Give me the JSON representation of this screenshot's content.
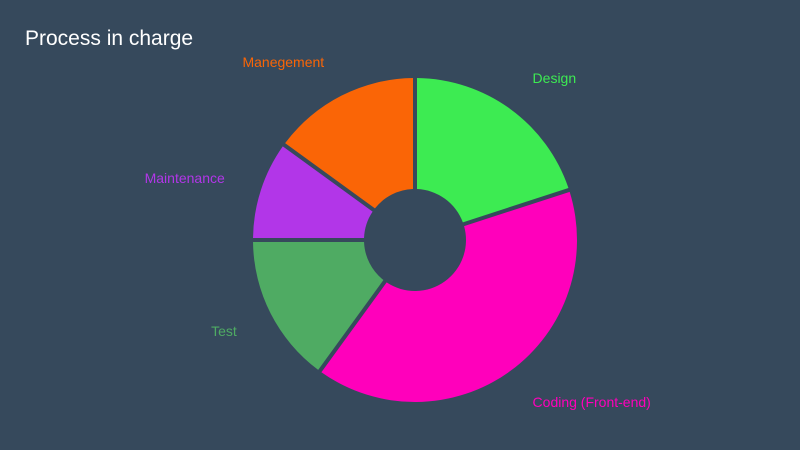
{
  "chart_data": {
    "type": "pie",
    "title": "Process in charge",
    "background": "#36495c",
    "donut": true,
    "slices": [
      {
        "label": "Design",
        "value": 20,
        "color": "#3deb52"
      },
      {
        "label": "Coding (Front-end)",
        "value": 40,
        "color": "#ff00bb"
      },
      {
        "label": "Test",
        "value": 15,
        "color": "#4fab63"
      },
      {
        "label": "Maintenance",
        "value": 10,
        "color": "#b236e8"
      },
      {
        "label": "Manegement",
        "value": 15,
        "color": "#fa6506"
      }
    ]
  }
}
